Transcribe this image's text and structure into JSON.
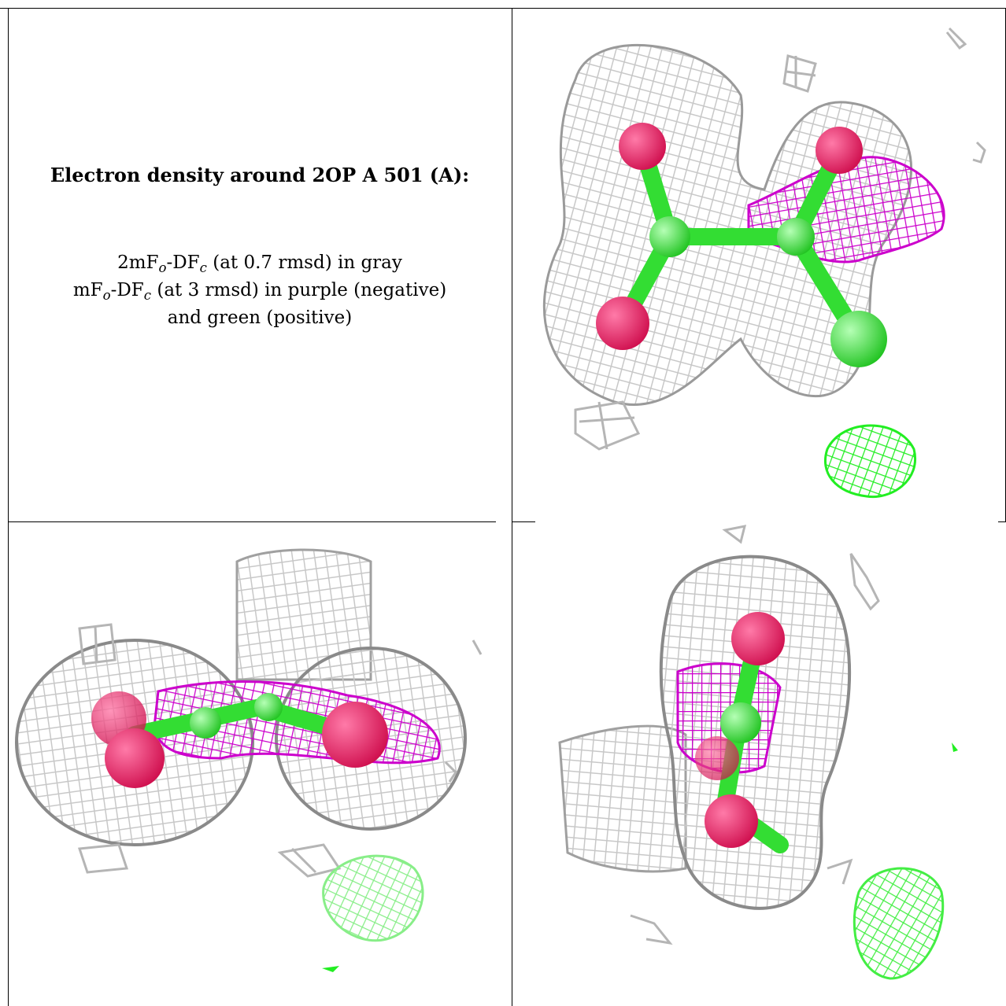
{
  "caption": {
    "title": "Electron density around 2OP A 501 (A):",
    "line1_pre": "2mF",
    "line1_sub1": "o",
    "line1_mid": "-DF",
    "line1_sub2": "c",
    "line1_post": " (at 0.7 rmsd) in gray",
    "line2_pre": "mF",
    "line2_sub1": "o",
    "line2_mid": "-DF",
    "line2_sub2": "c",
    "line2_post": " (at 3 rmsd) in purple (negative)",
    "line3": "and green (positive)"
  },
  "colors": {
    "mesh_gray": "#c8c8c8",
    "mesh_purple": "#cc00cc",
    "mesh_green": "#33ee33",
    "atom_oxygen": "#e8145a",
    "atom_carbon": "#33dd33",
    "atom_chlorine": "#33ee33"
  },
  "panels": [
    {
      "view": "top-right"
    },
    {
      "view": "bottom-left"
    },
    {
      "view": "bottom-right"
    }
  ]
}
